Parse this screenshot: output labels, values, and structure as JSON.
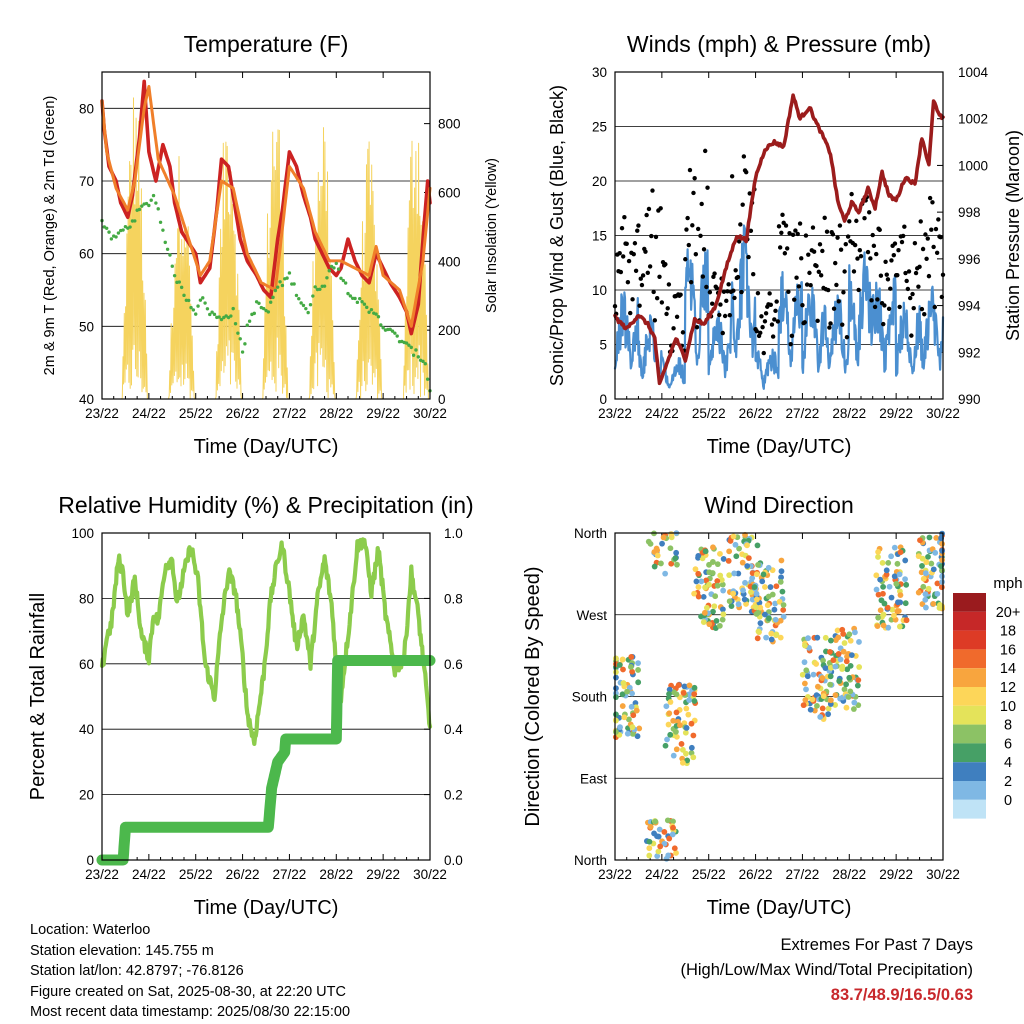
{
  "chart_data": [
    {
      "type": "line",
      "title": "Temperature (F)",
      "xlabel": "Time (Day/UTC)",
      "ylabel": "2m & 9m T (Red, Orange) & 2m Td (Green)",
      "y2label": "Solar Insolation (Yellow)",
      "x_ticks": [
        "23/22",
        "24/22",
        "25/22",
        "26/22",
        "27/22",
        "28/22",
        "29/22",
        "30/22"
      ],
      "ylim": [
        40,
        85
      ],
      "y_ticks": [
        40,
        50,
        60,
        70,
        80
      ],
      "y2lim": [
        0,
        950
      ],
      "y2_ticks": [
        0,
        200,
        400,
        600,
        800
      ],
      "grid": "horizontal",
      "series": [
        {
          "role": "2m T",
          "color": "#cc2222",
          "x": [
            0,
            0.05,
            0.15,
            0.3,
            0.4,
            0.55,
            0.65,
            0.8,
            0.9,
            1.0,
            1.15,
            1.3,
            1.45,
            1.55,
            1.7,
            1.8,
            2.0,
            2.1,
            2.3,
            2.45,
            2.55,
            2.7,
            2.8,
            2.95,
            3.1,
            3.3,
            3.45,
            3.6,
            3.75,
            3.85,
            4.0,
            4.15,
            4.3,
            4.45,
            4.55,
            4.7,
            4.85,
            5.0,
            5.1,
            5.25,
            5.4,
            5.55,
            5.7,
            5.85,
            6.0,
            6.15,
            6.35,
            6.5,
            6.6,
            6.75,
            6.85,
            6.95,
            7.0
          ],
          "y": [
            81,
            77,
            72,
            70,
            67,
            65,
            68,
            76,
            83.7,
            74,
            70,
            75,
            72,
            67,
            63,
            62,
            60,
            56,
            58,
            66,
            73,
            72,
            68,
            62,
            59,
            57,
            55,
            54,
            62,
            66,
            74,
            72,
            68,
            65,
            62,
            60,
            58,
            57,
            58,
            62,
            59,
            57,
            56,
            60,
            58,
            56,
            54,
            52,
            49,
            53,
            62,
            70,
            67
          ]
        },
        {
          "role": "9m T",
          "color": "#f07f2a",
          "x": [
            0,
            0.1,
            0.3,
            0.55,
            0.7,
            0.9,
            1.0,
            1.2,
            1.55,
            1.8,
            2.1,
            2.3,
            2.55,
            2.8,
            3.1,
            3.4,
            3.7,
            4.0,
            4.3,
            4.55,
            4.85,
            5.1,
            5.4,
            5.7,
            5.85,
            6.0,
            6.35,
            6.6,
            6.85,
            7.0
          ],
          "y": [
            81,
            74,
            69,
            66,
            70,
            80,
            83,
            73,
            68,
            63,
            57,
            59,
            70,
            69,
            60,
            56,
            55,
            72,
            69,
            63,
            59,
            59,
            58,
            57,
            61,
            57,
            55,
            50,
            59,
            69
          ]
        },
        {
          "role": "2m Td",
          "color": "#44aa44",
          "x": [
            0,
            0.1,
            0.25,
            0.4,
            0.6,
            0.8,
            1.0,
            1.1,
            1.2,
            1.35,
            1.5,
            1.7,
            1.9,
            2.0,
            2.1,
            2.3,
            2.5,
            2.8,
            2.95,
            3.0,
            3.1,
            3.3,
            3.55,
            3.7,
            3.85,
            4.0,
            4.2,
            4.4,
            4.55,
            4.75,
            4.9,
            5.0,
            5.1,
            5.25,
            5.4,
            5.55,
            5.7,
            5.85,
            6.0,
            6.2,
            6.4,
            6.55,
            6.75,
            6.9,
            7.0
          ],
          "y": [
            64.5,
            63,
            62,
            63,
            64,
            66,
            67,
            68,
            66,
            62,
            58,
            55,
            53,
            52,
            54,
            52,
            51,
            52,
            48,
            46,
            50,
            53,
            52,
            55,
            56,
            57,
            54,
            52,
            55,
            56,
            58,
            59,
            57,
            55,
            54,
            53,
            52,
            52,
            50,
            49,
            48,
            47,
            46,
            45,
            41
          ]
        }
      ],
      "insolation": {
        "color": "#f5d35e",
        "peaks": [
          940,
          760,
          920,
          950,
          910,
          750,
          940
        ]
      }
    },
    {
      "type": "line",
      "title": "Winds (mph) & Pressure (mb)",
      "xlabel": "Time (Day/UTC)",
      "ylabel": "Sonic/Prop Wind & Gust (Blue, Black)",
      "y2label": "Station Pressure (Maroon)",
      "x_ticks": [
        "23/22",
        "24/22",
        "25/22",
        "26/22",
        "27/22",
        "28/22",
        "29/22",
        "30/22"
      ],
      "ylim": [
        0,
        30
      ],
      "y_ticks": [
        0,
        5,
        10,
        15,
        20,
        25,
        30
      ],
      "y2lim": [
        990,
        1004
      ],
      "y2_ticks": [
        990,
        992,
        994,
        996,
        998,
        1000,
        1002,
        1004
      ],
      "grid": "horizontal",
      "series": [
        {
          "role": "Station Pressure",
          "color": "#9b1c1c",
          "x": [
            0,
            0.25,
            0.5,
            0.7,
            0.85,
            0.95,
            1.05,
            1.3,
            1.5,
            1.7,
            1.9,
            2.15,
            2.4,
            2.6,
            2.8,
            3.0,
            3.2,
            3.4,
            3.6,
            3.8,
            3.95,
            4.15,
            4.3,
            4.45,
            4.6,
            4.75,
            4.9,
            5.05,
            5.2,
            5.4,
            5.55,
            5.7,
            5.85,
            6.0,
            6.2,
            6.4,
            6.55,
            6.7,
            6.8,
            6.9,
            7.0
          ],
          "y": [
            993.5,
            993,
            993.6,
            993.2,
            992.6,
            990.6,
            991.2,
            992.6,
            991.7,
            993.4,
            993.2,
            994,
            995.8,
            997,
            996.8,
            999.5,
            1000.7,
            1001,
            1000.8,
            1003,
            1002,
            1002.5,
            1001.8,
            1001.2,
            1000.5,
            998.5,
            997.6,
            998.4,
            998,
            999,
            998.2,
            999.7,
            998.7,
            998.5,
            999.5,
            999.2,
            1001.2,
            1000,
            1002.8,
            1002.2,
            1002
          ]
        },
        {
          "role": "Sonic/Prop Wind",
          "color": "#4b8fd0",
          "peaks": [
            10,
            8,
            4,
            15,
            9,
            16,
            5,
            12,
            11,
            10,
            14,
            12,
            9,
            11
          ]
        },
        {
          "role": "Gust",
          "color": "#000000",
          "peaks": [
            19,
            27,
            18,
            28,
            12,
            26,
            12,
            22,
            20,
            21,
            25,
            18,
            19,
            25
          ]
        }
      ]
    },
    {
      "type": "line",
      "title": "Relative Humidity (%) & Precipitation (in)",
      "xlabel": "Time (Day/UTC)",
      "ylabel": "Percent & Total Rainfall",
      "x_ticks": [
        "23/22",
        "24/22",
        "25/22",
        "26/22",
        "27/22",
        "28/22",
        "29/22",
        "30/22"
      ],
      "ylim": [
        0,
        100
      ],
      "y_ticks": [
        0,
        20,
        40,
        60,
        80,
        100
      ],
      "y2lim": [
        0,
        1.0
      ],
      "y2_ticks": [
        "0.0",
        "0.2",
        "0.4",
        "0.6",
        "0.8",
        "1.0"
      ],
      "grid": "horizontal",
      "series": [
        {
          "role": "Relative Humidity",
          "color": "#8ccc4c",
          "x": [
            0,
            0.1,
            0.2,
            0.35,
            0.45,
            0.55,
            0.7,
            0.85,
            1.0,
            1.1,
            1.2,
            1.35,
            1.5,
            1.6,
            1.75,
            1.9,
            2.05,
            2.2,
            2.4,
            2.55,
            2.7,
            2.85,
            3.0,
            3.1,
            3.25,
            3.45,
            3.6,
            3.75,
            3.85,
            4.0,
            4.15,
            4.3,
            4.45,
            4.6,
            4.75,
            4.9,
            5.0,
            5.1,
            5.3,
            5.45,
            5.6,
            5.75,
            5.9,
            6.05,
            6.25,
            6.45,
            6.6,
            6.75,
            6.9,
            7.0
          ],
          "y": [
            58,
            68,
            72,
            92,
            88,
            75,
            86,
            68,
            62,
            75,
            73,
            90,
            92,
            78,
            88,
            96,
            85,
            60,
            50,
            73,
            88,
            82,
            62,
            45,
            36,
            57,
            80,
            92,
            96,
            82,
            65,
            75,
            60,
            80,
            92,
            78,
            60,
            50,
            75,
            96,
            98,
            82,
            95,
            75,
            58,
            62,
            88,
            75,
            55,
            40
          ]
        },
        {
          "role": "Total Precipitation",
          "color": "#4cb84c",
          "steps": [
            [
              0,
              0.0
            ],
            [
              0.45,
              0.0
            ],
            [
              0.5,
              0.1
            ],
            [
              3.55,
              0.1
            ],
            [
              3.62,
              0.22
            ],
            [
              3.75,
              0.3
            ],
            [
              3.9,
              0.33
            ],
            [
              3.92,
              0.37
            ],
            [
              5.0,
              0.37
            ],
            [
              5.03,
              0.61
            ],
            [
              7.0,
              0.61
            ]
          ]
        }
      ]
    },
    {
      "type": "scatter",
      "title": "Wind Direction",
      "xlabel": "Time (Day/UTC)",
      "ylabel": "Direction (Colored By Speed)",
      "x_ticks": [
        "23/22",
        "24/22",
        "25/22",
        "26/22",
        "27/22",
        "28/22",
        "29/22",
        "30/22"
      ],
      "y_ticks": [
        "North",
        "East",
        "South",
        "West",
        "North"
      ],
      "ylim": [
        0,
        360
      ],
      "grid": "horizontal",
      "legend": {
        "title": "mph",
        "position": "right",
        "labels": [
          "20+",
          "18",
          "16",
          "14",
          "12",
          "10",
          "8",
          "6",
          "4",
          "2",
          "0"
        ],
        "colors": [
          "#9a1b1e",
          "#c62828",
          "#dd3b26",
          "#f06a2c",
          "#f8a53e",
          "#fdd659",
          "#e4e35a",
          "#8cc265",
          "#46a066",
          "#3f7fbf",
          "#7fb8e4",
          "#bfe3f6"
        ]
      },
      "clusters": [
        {
          "day": 0.2,
          "dir": 180
        },
        {
          "day": 1.0,
          "dir": 360
        },
        {
          "day": 1.4,
          "dir": 150
        },
        {
          "day": 2.0,
          "dir": 300
        },
        {
          "day": 2.75,
          "dir": 315
        },
        {
          "day": 3.3,
          "dir": 285
        },
        {
          "day": 4.3,
          "dir": 200
        },
        {
          "day": 4.9,
          "dir": 210
        },
        {
          "day": 5.9,
          "dir": 300
        },
        {
          "day": 6.8,
          "dir": 320
        }
      ]
    }
  ],
  "info": {
    "location": "Location: Waterloo",
    "elevation": "Station elevation: 145.755 m",
    "latlon": "Station lat/lon: 42.8797; -76.8126",
    "created": "Figure created on Sat, 2025-08-30, at 22:20 UTC",
    "recent": "Most recent data timestamp: 2025/08/30 22:15:00"
  },
  "extremes": {
    "title": "Extremes For Past 7 Days",
    "subtitle": "(High/Low/Max Wind/Total Precipitation)",
    "values": "83.7/48.9/16.5/0.63"
  }
}
